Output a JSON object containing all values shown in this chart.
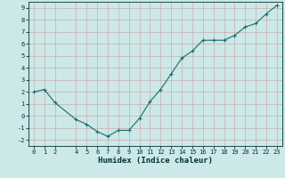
{
  "x": [
    0,
    1,
    2,
    4,
    5,
    6,
    7,
    8,
    9,
    10,
    11,
    12,
    13,
    14,
    15,
    16,
    17,
    18,
    19,
    20,
    21,
    22,
    23
  ],
  "y": [
    2.0,
    2.2,
    1.1,
    -0.3,
    -0.7,
    -1.3,
    -1.7,
    -1.2,
    -1.2,
    -0.2,
    1.2,
    2.2,
    3.5,
    4.8,
    5.4,
    6.3,
    6.3,
    6.3,
    6.7,
    7.4,
    7.7,
    8.5,
    9.2
  ],
  "line_color": "#1a6b6b",
  "marker": "+",
  "marker_size": 3.5,
  "linewidth": 0.8,
  "bg_color": "#cce8e8",
  "grid_color": "#aacece",
  "xlabel": "Humidex (Indice chaleur)",
  "xlim": [
    -0.5,
    23.5
  ],
  "ylim": [
    -2.5,
    9.5
  ],
  "yticks": [
    -2,
    -1,
    0,
    1,
    2,
    3,
    4,
    5,
    6,
    7,
    8,
    9
  ],
  "xticks": [
    0,
    1,
    2,
    4,
    5,
    6,
    7,
    8,
    9,
    10,
    11,
    12,
    13,
    14,
    15,
    16,
    17,
    18,
    19,
    20,
    21,
    22,
    23
  ],
  "tick_fontsize": 5.0,
  "label_fontsize": 6.5,
  "label_color": "#003333",
  "axis_color": "#003333"
}
